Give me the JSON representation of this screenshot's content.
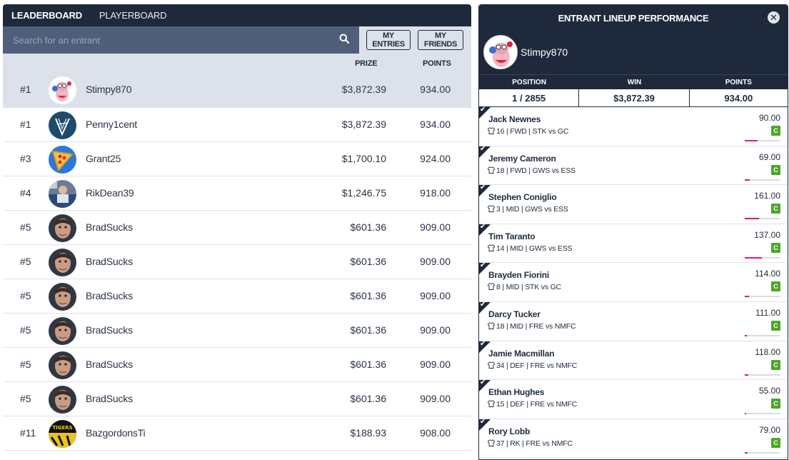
{
  "tabs": [
    {
      "label": "LEADERBOARD",
      "active": true
    },
    {
      "label": "PLAYERBOARD",
      "active": false
    }
  ],
  "search": {
    "placeholder": "Search for an entrant"
  },
  "buttons": {
    "my_entries": "MY ENTRIES",
    "my_friends": "MY FRIENDS"
  },
  "columns": {
    "prize": "PRIZE",
    "points": "POINTS"
  },
  "leaderboard": [
    {
      "rank": "#1",
      "name": "Stimpy870",
      "prize": "$3,872.39",
      "points": "934.00",
      "avatar": "stimpy-avatar"
    },
    {
      "rank": "#1",
      "name": "Penny1cent",
      "prize": "$3,872.39",
      "points": "934.00",
      "avatar": "penny-avatar"
    },
    {
      "rank": "#3",
      "name": "Grant25",
      "prize": "$1,700.10",
      "points": "924.00",
      "avatar": "pizza-avatar"
    },
    {
      "rank": "#4",
      "name": "RikDean39",
      "prize": "$1,246.75",
      "points": "918.00",
      "avatar": "photo-avatar"
    },
    {
      "rank": "#5",
      "name": "BradSucks",
      "prize": "$601.36",
      "points": "909.00",
      "avatar": "face-avatar"
    },
    {
      "rank": "#5",
      "name": "BradSucks",
      "prize": "$601.36",
      "points": "909.00",
      "avatar": "face-avatar"
    },
    {
      "rank": "#5",
      "name": "BradSucks",
      "prize": "$601.36",
      "points": "909.00",
      "avatar": "face-avatar"
    },
    {
      "rank": "#5",
      "name": "BradSucks",
      "prize": "$601.36",
      "points": "909.00",
      "avatar": "face-avatar"
    },
    {
      "rank": "#5",
      "name": "BradSucks",
      "prize": "$601.36",
      "points": "909.00",
      "avatar": "face-avatar"
    },
    {
      "rank": "#5",
      "name": "BradSucks",
      "prize": "$601.36",
      "points": "909.00",
      "avatar": "face-avatar"
    },
    {
      "rank": "#11",
      "name": "BazgordonsTi",
      "prize": "$188.93",
      "points": "908.00",
      "avatar": "tigers-avatar"
    }
  ],
  "panel": {
    "title": "ENTRANT LINEUP PERFORMANCE",
    "username": "Stimpy870",
    "stats_labels": {
      "position": "POSITION",
      "win": "WIN",
      "points": "POINTS"
    },
    "stats_values": {
      "position": "1 / 2855",
      "win": "$3,872.39",
      "points": "934.00"
    }
  },
  "lineup": [
    {
      "name": "Jack Newnes",
      "number": "16",
      "pos": "FWD",
      "match": "STK vs GC",
      "points": "90.00",
      "badge": "C",
      "progress": 0.35
    },
    {
      "name": "Jeremy Cameron",
      "number": "18",
      "pos": "FWD",
      "match": "GWS vs ESS",
      "points": "69.00",
      "badge": "C",
      "progress": 0.13
    },
    {
      "name": "Stephen Coniglio",
      "number": "3",
      "pos": "MID",
      "match": "GWS vs ESS",
      "points": "161.00",
      "badge": "C",
      "progress": 0.4
    },
    {
      "name": "Tim Taranto",
      "number": "14",
      "pos": "MID",
      "match": "GWS vs ESS",
      "points": "137.00",
      "badge": "C",
      "progress": 0.48
    },
    {
      "name": "Brayden Fiorini",
      "number": "8",
      "pos": "MID",
      "match": "STK vs GC",
      "points": "114.00",
      "badge": "C",
      "progress": 0.12
    },
    {
      "name": "Darcy Tucker",
      "number": "18",
      "pos": "MID",
      "match": "FRE vs NMFC",
      "points": "111.00",
      "badge": "C",
      "progress": 0.06
    },
    {
      "name": "Jamie Macmillan",
      "number": "34",
      "pos": "DEF",
      "match": "FRE vs NMFC",
      "points": "118.00",
      "badge": "C",
      "progress": 0.09
    },
    {
      "name": "Ethan Hughes",
      "number": "15",
      "pos": "DEF",
      "match": "FRE vs NMFC",
      "points": "55.00",
      "badge": "C",
      "progress": 0.03
    },
    {
      "name": "Rory Lobb",
      "number": "37",
      "pos": "RK",
      "match": "FRE vs NMFC",
      "points": "79.00",
      "badge": "C",
      "progress": 0.08
    }
  ],
  "colors": {
    "navy": "#1e2a3b",
    "search": "#4f5f7a",
    "bg": "#dde2ea",
    "badge": "#4ea52c",
    "bar": "#e8195a"
  }
}
